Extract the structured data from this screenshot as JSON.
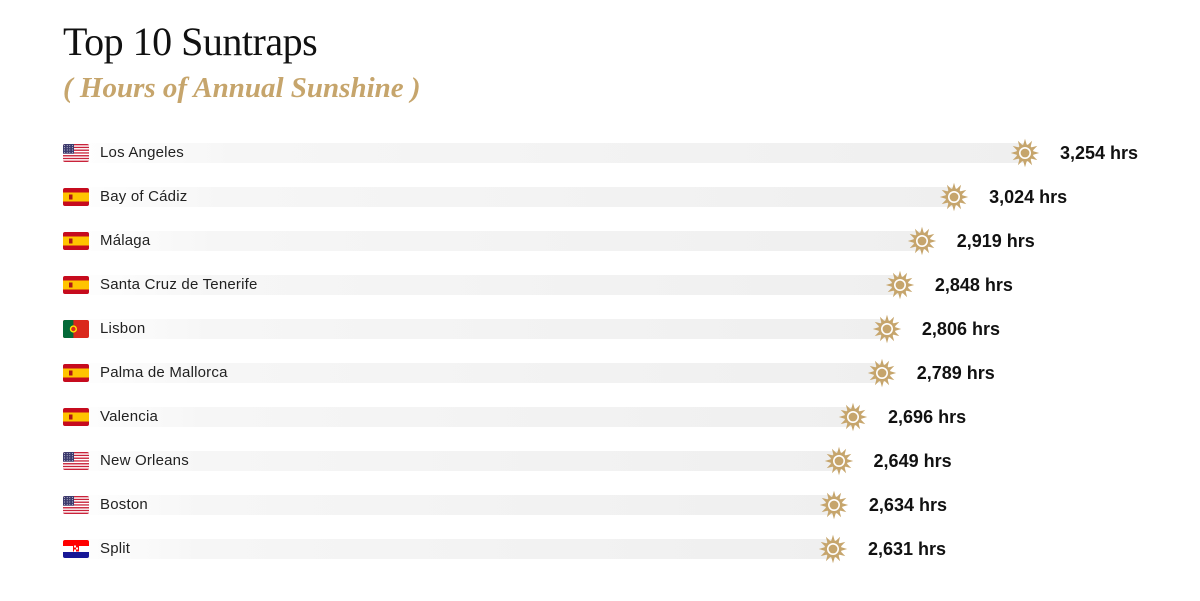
{
  "colors": {
    "accent_gold": "#c6a56c",
    "bar": "#efefef",
    "text": "#111111"
  },
  "icons": {
    "marker": "sun-icon"
  },
  "chart_data": {
    "type": "bar",
    "orientation": "horizontal",
    "title": "Top 10 Suntraps",
    "subtitle": "( Hours of Annual Sunshine )",
    "unit": "hrs",
    "xlabel": "",
    "ylabel": "",
    "grid": false,
    "categories": [
      "Los Angeles",
      "Bay of Cádiz",
      "Málaga",
      "Santa Cruz de Tenerife",
      "Lisbon",
      "Palma de Mallorca",
      "Valencia",
      "New Orleans",
      "Boston",
      "Split"
    ],
    "values": [
      3254,
      3024,
      2919,
      2848,
      2806,
      2789,
      2696,
      2649,
      2634,
      2631
    ],
    "value_labels": [
      "3,254 hrs",
      "3,024 hrs",
      "2,919 hrs",
      "2,848 hrs",
      "2,806 hrs",
      "2,789 hrs",
      "2,696 hrs",
      "2,649 hrs",
      "2,634 hrs",
      "2,631 hrs"
    ],
    "flags": [
      "us-flag-icon",
      "spain-flag-icon",
      "spain-flag-icon",
      "spain-flag-icon",
      "portugal-flag-icon",
      "spain-flag-icon",
      "spain-flag-icon",
      "us-flag-icon",
      "us-flag-icon",
      "croatia-flag-icon"
    ]
  }
}
